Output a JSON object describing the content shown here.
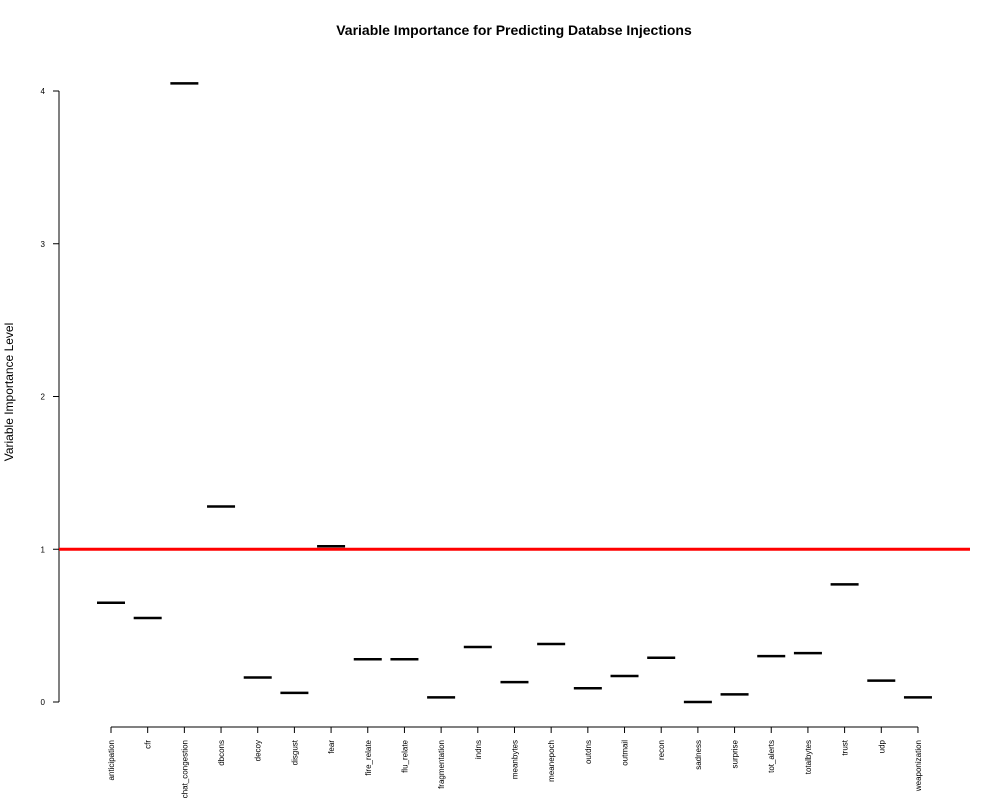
{
  "chart_data": {
    "type": "bar",
    "title": "Variable Importance for Predicting Databse Injections",
    "xlabel": "",
    "ylabel": "Variable Importance Level",
    "ylim": [
      0,
      4
    ],
    "yticks": [
      "0",
      "1",
      "2",
      "3",
      "4"
    ],
    "grid": false,
    "legend": "none",
    "mark_style": "horizontal-segment",
    "categories": [
      "anticipation",
      "cfr",
      "chat_congestion",
      "dbcons",
      "decoy",
      "disgust",
      "fear",
      "fire_relate",
      "flu_relate",
      "fragmentation",
      "indns",
      "meanbytes",
      "meanepoch",
      "outdns",
      "outmail",
      "recon",
      "sadness",
      "surprise",
      "tot_alerts",
      "totalbytes",
      "trust",
      "udp",
      "weaponization"
    ],
    "values": [
      0.65,
      0.55,
      4.05,
      1.28,
      0.16,
      0.06,
      1.02,
      0.28,
      0.28,
      0.03,
      0.36,
      0.13,
      0.38,
      0.09,
      0.17,
      0.29,
      0.0,
      0.05,
      0.3,
      0.32,
      0.77,
      0.14,
      0.03
    ],
    "reference_line": {
      "value": 1,
      "color": "#ff0000"
    },
    "mark_color": "#000000"
  }
}
